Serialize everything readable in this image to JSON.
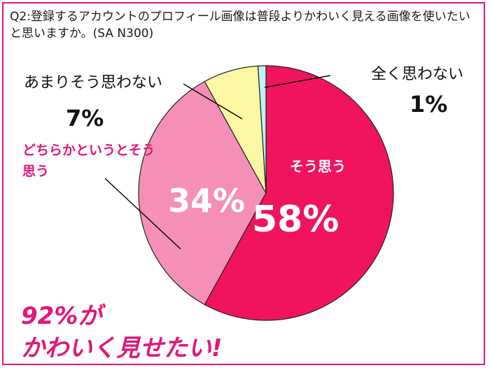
{
  "question": "Q2:登録するアカウントのプロフィール画像は普段よりかわいく見える画像を使いたいと思いますか。(SA N300)",
  "chart_data": {
    "type": "pie",
    "title": "Q2:登録するアカウントのプロフィール画像は普段よりかわいく見える画像を使いたいと思いますか。(SA N300)",
    "start_angle_deg": 0,
    "direction": "clockwise",
    "slices": [
      {
        "label": "そう思う",
        "value": 58,
        "value_label": "58%",
        "color": "#f0145c"
      },
      {
        "label": "どちらかというとそう思う",
        "value": 34,
        "value_label": "34%",
        "color": "#f58fb8"
      },
      {
        "label": "あまりそう思わない",
        "value": 7,
        "value_label": "7%",
        "color": "#fbf7a3"
      },
      {
        "label": "全く思わない",
        "value": 1,
        "value_label": "1%",
        "color": "#bff2f2"
      }
    ]
  },
  "callout": {
    "line1": "92%が",
    "line2": "かわいく見せたい!"
  },
  "colors": {
    "accent": "#e2177a",
    "border": "#e2177a"
  }
}
